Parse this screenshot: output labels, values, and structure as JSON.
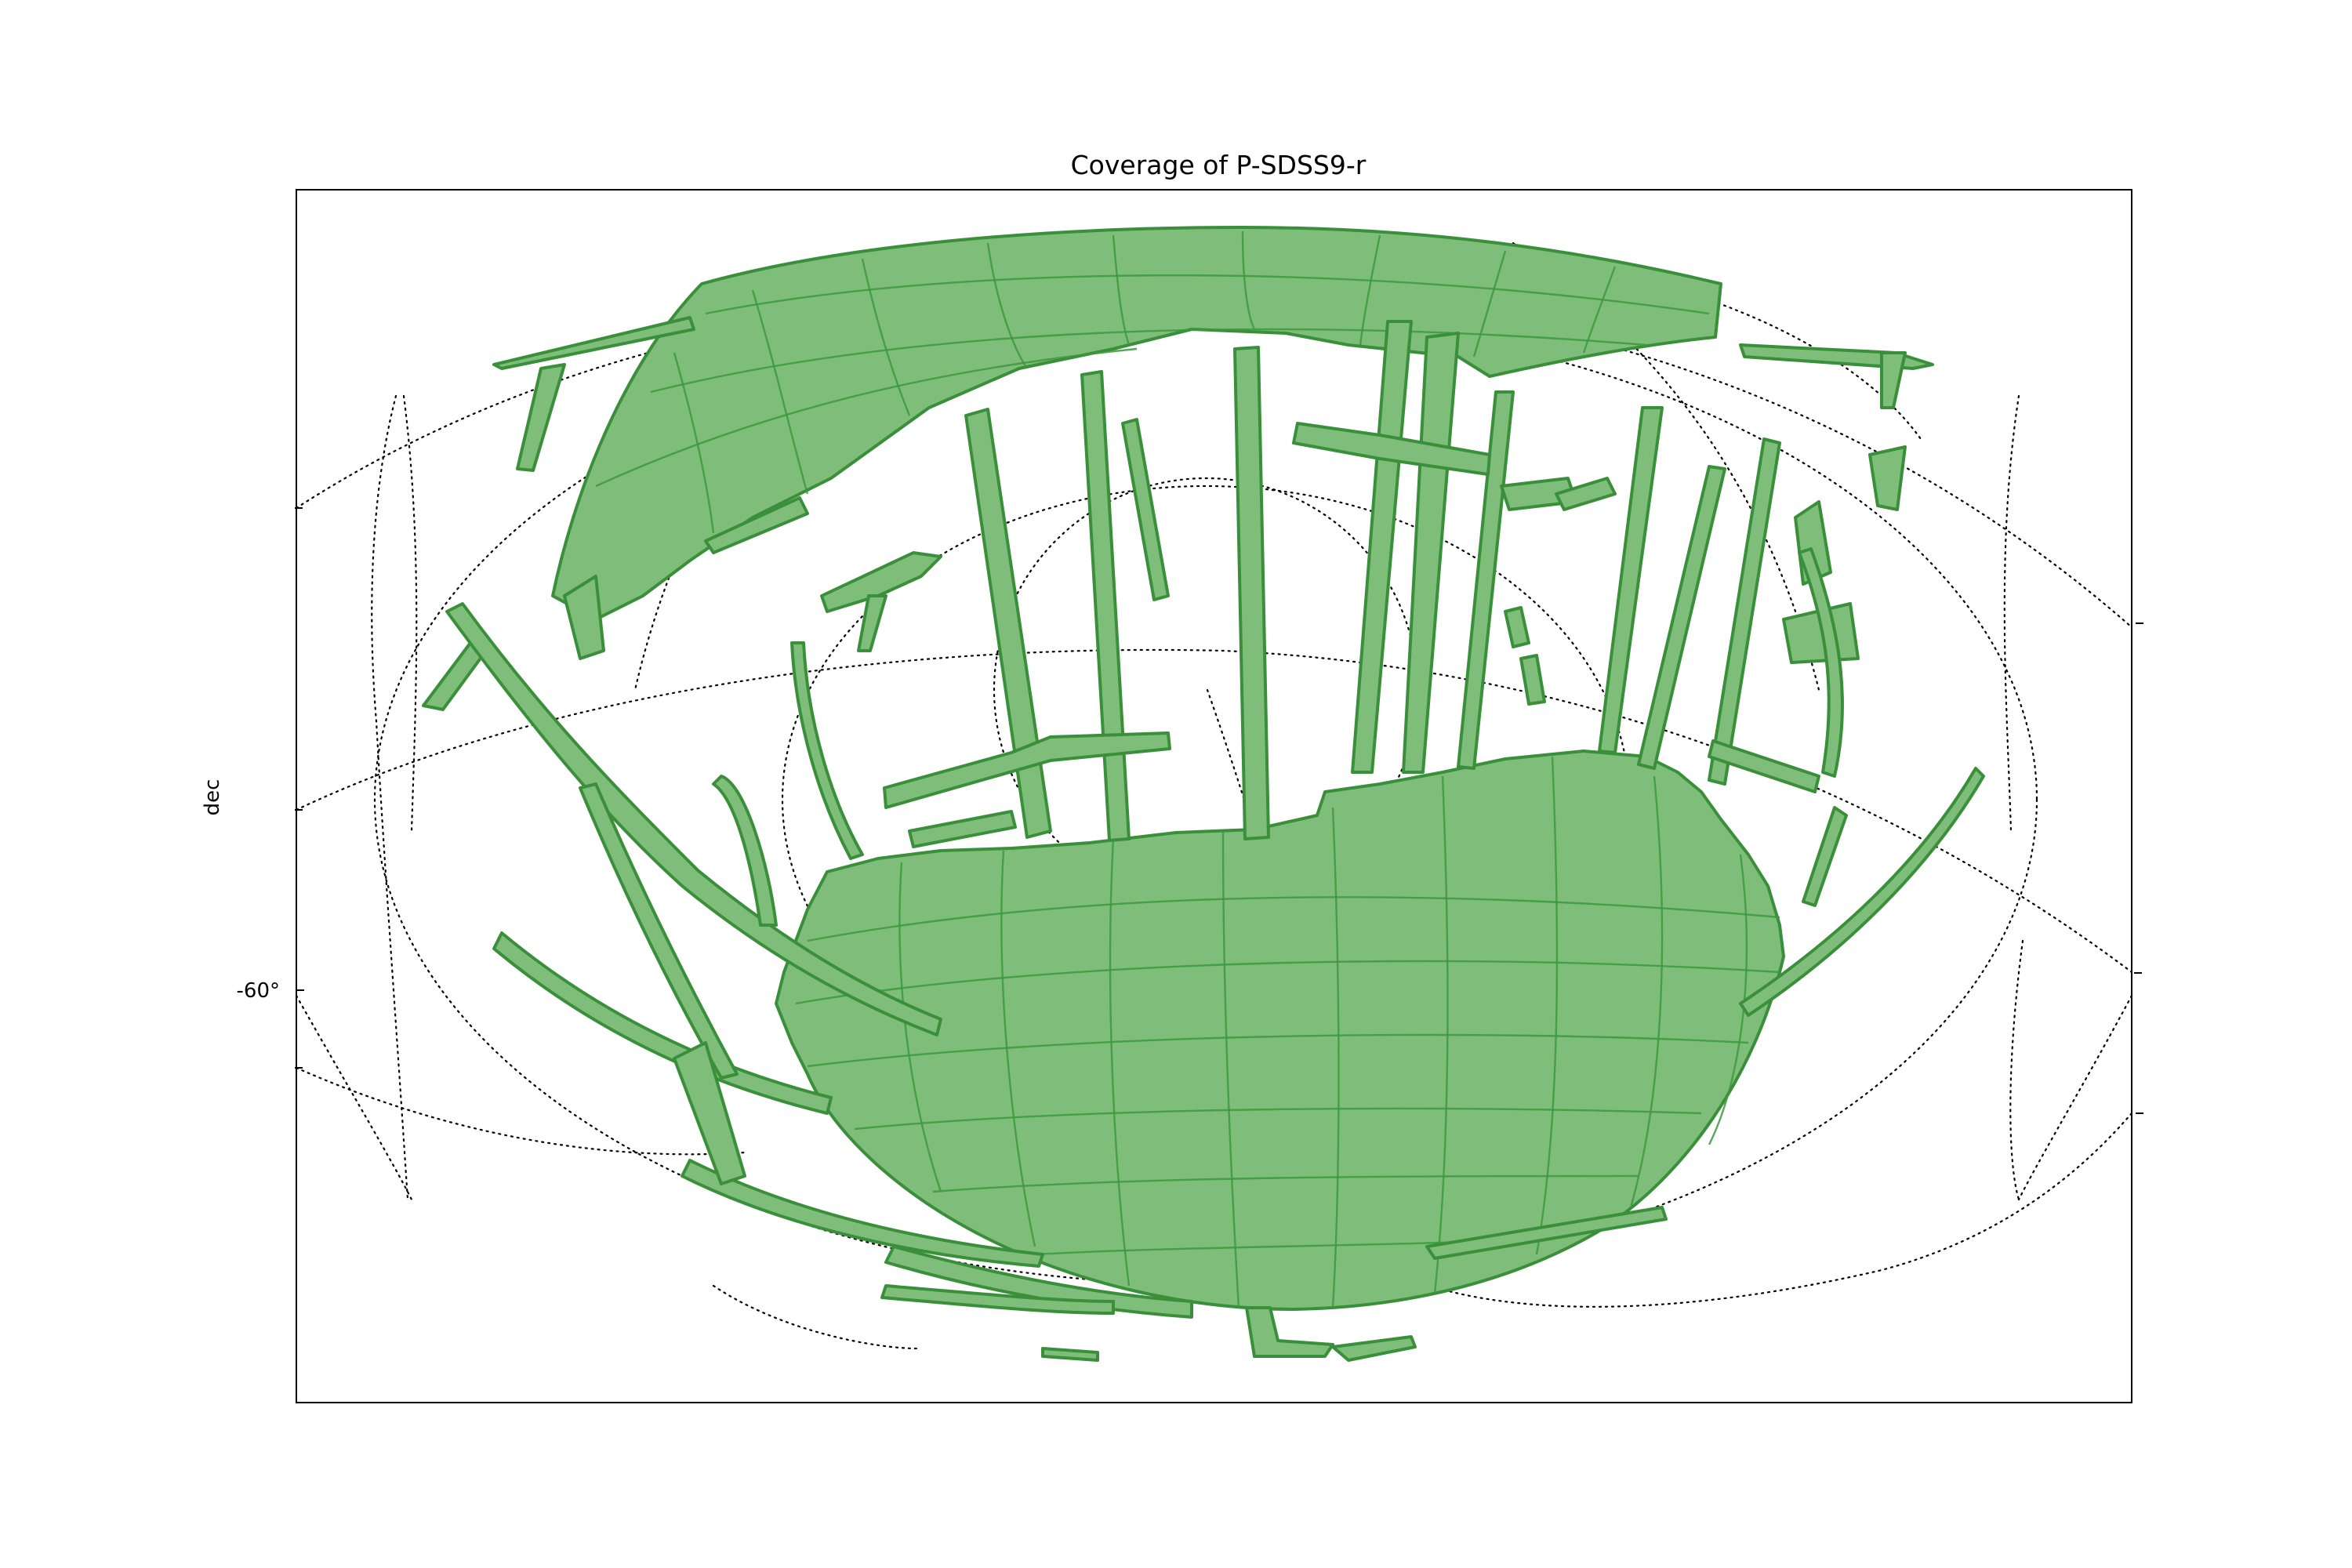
{
  "chart_data": {
    "type": "map",
    "title": "Coverage of P-SDSS9-r",
    "ylabel": "dec",
    "yticks": [
      "-60°"
    ],
    "grid": true,
    "colors": {
      "coverage_fill": "#7fbe7a",
      "coverage_edge": "#3a8f3a",
      "grid": "#000000"
    }
  }
}
